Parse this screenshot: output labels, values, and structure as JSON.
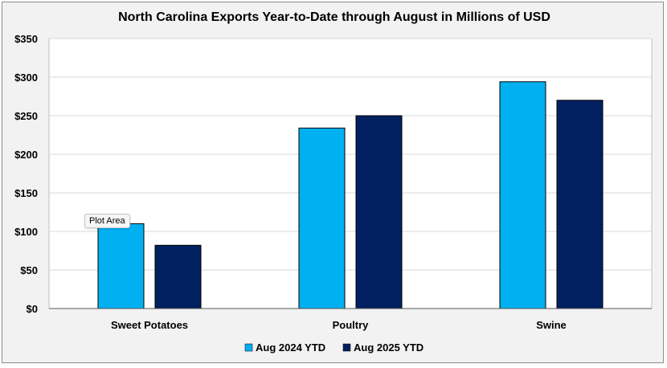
{
  "tooltip": "Plot Area",
  "chart_data": {
    "type": "bar",
    "title": "North Carolina Exports Year-to-Date through August in Millions of USD",
    "categories": [
      "Sweet Potatoes",
      "Poultry",
      "Swine"
    ],
    "series": [
      {
        "name": "Aug 2024 YTD",
        "color": "#00b0f0",
        "values": [
          110,
          234,
          294
        ]
      },
      {
        "name": "Aug 2025 YTD",
        "color": "#002060",
        "values": [
          82,
          250,
          270
        ]
      }
    ],
    "ylim": [
      0,
      350
    ],
    "yticks": [
      0,
      50,
      100,
      150,
      200,
      250,
      300,
      350
    ],
    "ytick_labels": [
      "$0",
      "$50",
      "$100",
      "$150",
      "$200",
      "$250",
      "$300",
      "$350"
    ],
    "gridlines": true,
    "legend_position": "bottom",
    "xlabel": "",
    "ylabel": ""
  }
}
